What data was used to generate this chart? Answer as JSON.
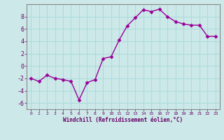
{
  "x": [
    0,
    1,
    2,
    3,
    4,
    5,
    6,
    7,
    8,
    9,
    10,
    11,
    12,
    13,
    14,
    15,
    16,
    17,
    18,
    19,
    20,
    21,
    22,
    23
  ],
  "y": [
    -2.0,
    -2.5,
    -1.5,
    -2.0,
    -2.2,
    -2.5,
    -5.5,
    -2.7,
    -2.2,
    1.2,
    1.5,
    4.2,
    6.5,
    7.8,
    9.1,
    8.8,
    9.2,
    8.0,
    7.2,
    6.8,
    6.6,
    6.6,
    4.8,
    4.8
  ],
  "x_ticks": [
    0,
    1,
    2,
    3,
    4,
    5,
    6,
    7,
    8,
    9,
    10,
    11,
    12,
    13,
    14,
    15,
    16,
    17,
    18,
    19,
    20,
    21,
    22,
    23
  ],
  "x_tick_labels": [
    "0",
    "1",
    "2",
    "3",
    "4",
    "5",
    "6",
    "7",
    "8",
    "9",
    "10",
    "11",
    "12",
    "13",
    "14",
    "15",
    "16",
    "17",
    "18",
    "19",
    "20",
    "21",
    "22",
    "23"
  ],
  "y_ticks": [
    -6,
    -4,
    -2,
    0,
    2,
    4,
    6,
    8
  ],
  "ylim": [
    -7,
    10
  ],
  "xlim": [
    -0.5,
    23.5
  ],
  "xlabel": "Windchill (Refroidissement éolien,°C)",
  "line_color": "#990099",
  "marker": "D",
  "marker_size": 2.5,
  "bg_color": "#cde8e8",
  "grid_color": "#aadddd",
  "title": "",
  "fig_bg": "#cde8e8",
  "spine_color": "#888888",
  "tick_color": "#660066",
  "label_color": "#660066"
}
